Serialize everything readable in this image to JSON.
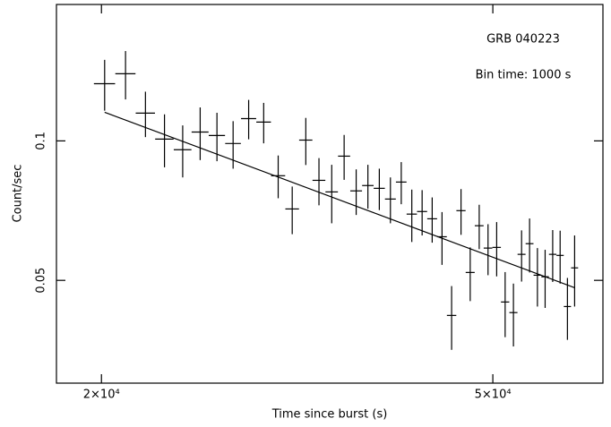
{
  "chart_data": {
    "type": "errorbar",
    "x_label": "Time since burst (s)",
    "y_label": "Count/sec",
    "annotations": [
      "GRB 040223",
      "Bin time: 1000 s"
    ],
    "xscale": "log",
    "yscale": "log",
    "color": "#000000",
    "xlim": [
      18000,
      64700
    ],
    "ylim": [
      0.03,
      0.197
    ],
    "xticks": [
      {
        "value": 20000,
        "label": "2×10⁴"
      },
      {
        "value": 50000,
        "label": "5×10⁴"
      }
    ],
    "yticks": [
      0.1,
      0.05
    ],
    "xerr": 500,
    "x": [
      20150,
      21160,
      22170,
      23180,
      24190,
      25200,
      26210,
      27220,
      28230,
      29240,
      30250,
      31260,
      32270,
      33280,
      34290,
      35300,
      36310,
      37320,
      38330,
      39340,
      40350,
      41360,
      42370,
      43380,
      44390,
      45400,
      46410,
      47420,
      48430,
      49440,
      50450,
      51460,
      52470,
      53480,
      54490,
      55500,
      56510,
      57520,
      58530,
      59540,
      60550
    ],
    "values": [
      0.1329,
      0.1396,
      0.1148,
      0.1009,
      0.0957,
      0.1045,
      0.1027,
      0.0987,
      0.1117,
      0.1098,
      0.0841,
      0.0713,
      0.1004,
      0.0822,
      0.0776,
      0.0927,
      0.078,
      0.0801,
      0.079,
      0.0749,
      0.0815,
      0.0695,
      0.0704,
      0.0679,
      0.0621,
      0.042,
      0.0707,
      0.052,
      0.0656,
      0.0587,
      0.0589,
      0.0449,
      0.0426,
      0.0569,
      0.06,
      0.0513,
      0.0509,
      0.0569,
      0.0566,
      0.0439,
      0.0532
    ],
    "errors": [
      0.0167,
      0.0167,
      0.0129,
      0.0132,
      0.0123,
      0.0136,
      0.0123,
      0.0116,
      0.0109,
      0.011,
      0.0089,
      0.0084,
      0.0117,
      0.0096,
      0.0112,
      0.0103,
      0.0088,
      0.0087,
      0.0081,
      0.0085,
      0.0085,
      0.009,
      0.0079,
      0.0076,
      0.0081,
      0.0066,
      0.008,
      0.0069,
      0.0072,
      0.0074,
      0.0079,
      0.0072,
      0.0066,
      0.0072,
      0.008,
      0.0074,
      0.0073,
      0.0073,
      0.0074,
      0.0067,
      0.0093
    ],
    "fit": {
      "x": [
        20150,
        60550
      ],
      "values": [
        0.1153,
        0.0482
      ]
    }
  }
}
